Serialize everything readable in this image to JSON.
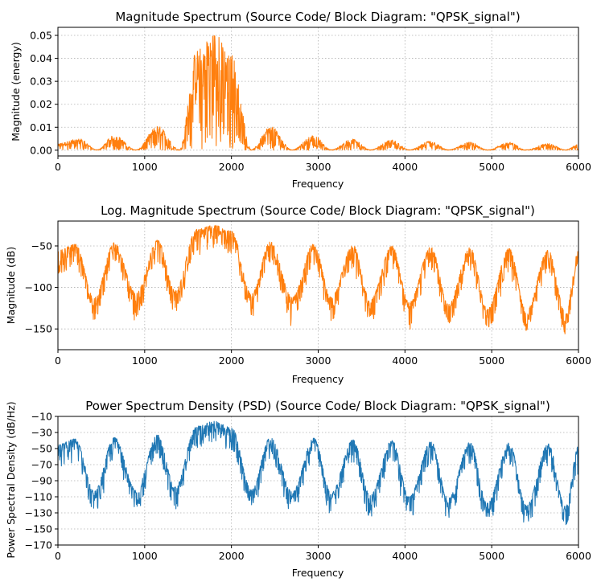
{
  "chart_data": [
    {
      "type": "line",
      "title": "Magnitude Spectrum (Source Code/ Block Diagram: \"QPSK_signal\")",
      "xlabel": "Frequency",
      "ylabel": "Magnitude (energy)",
      "xlim": [
        0,
        6000
      ],
      "ylim": [
        -0.0025,
        0.0535
      ],
      "xticks": [
        0,
        1000,
        2000,
        3000,
        4000,
        5000,
        6000
      ],
      "xtick_labels": [
        "0",
        "1000",
        "2000",
        "3000",
        "4000",
        "5000",
        "6000"
      ],
      "yticks": [
        0,
        0.01,
        0.02,
        0.03,
        0.04,
        0.05
      ],
      "ytick_labels": [
        "0.00",
        "0.01",
        "0.02",
        "0.03",
        "0.04",
        "0.05"
      ],
      "grid": true,
      "color": "#ff7f0e",
      "envelope": {
        "x": [
          0,
          250,
          450,
          650,
          900,
          1150,
          1400,
          1600,
          1800,
          2000,
          2230,
          2450,
          2700,
          2950,
          3150,
          3400,
          3600,
          3850,
          4050,
          4300,
          4500,
          4750,
          4950,
          5200,
          5400,
          5650,
          5850,
          6000
        ],
        "y": [
          0.003,
          0.005,
          0.0002,
          0.0065,
          0.0002,
          0.0105,
          0.0003,
          0.044,
          0.0515,
          0.042,
          0.0003,
          0.0105,
          0.0002,
          0.0065,
          0.0002,
          0.005,
          0.0002,
          0.0045,
          0.0002,
          0.004,
          0.0002,
          0.0035,
          0.0002,
          0.0035,
          0.0002,
          0.003,
          0.0002,
          0.0025
        ]
      }
    },
    {
      "type": "line",
      "title": "Log. Magnitude Spectrum (Source Code/ Block Diagram: \"QPSK_signal\")",
      "xlabel": "Frequency",
      "ylabel": "Magnitude (dB)",
      "xlim": [
        0,
        6000
      ],
      "ylim": [
        -175,
        -20
      ],
      "xticks": [
        0,
        1000,
        2000,
        3000,
        4000,
        5000,
        6000
      ],
      "xtick_labels": [
        "0",
        "1000",
        "2000",
        "3000",
        "4000",
        "5000",
        "6000"
      ],
      "yticks": [
        -50,
        -100,
        -150
      ],
      "ytick_labels": [
        "−50",
        "−100",
        "−150"
      ],
      "grid": true,
      "color": "#ff7f0e",
      "envelope": {
        "x": [
          0,
          200,
          420,
          650,
          900,
          1150,
          1350,
          1600,
          1800,
          2000,
          2230,
          2450,
          2700,
          2950,
          3150,
          3400,
          3600,
          3850,
          4050,
          4300,
          4500,
          4750,
          4950,
          5200,
          5400,
          5650,
          5850,
          6000
        ],
        "y": [
          -55,
          -48,
          -112,
          -46,
          -107,
          -43,
          -104,
          -30,
          -25,
          -32,
          -108,
          -45,
          -112,
          -47,
          -112,
          -49,
          -115,
          -50,
          -118,
          -51,
          -120,
          -52,
          -126,
          -53,
          -128,
          -55,
          -130,
          -56
        ]
      }
    },
    {
      "type": "line",
      "title": "Power Spectrum Density (PSD) (Source Code/ Block Diagram: \"QPSK_signal\")",
      "xlabel": "Frequency",
      "ylabel": "Power Spectral Density (dB/Hz)",
      "xlim": [
        0,
        6000
      ],
      "ylim": [
        -170,
        -10
      ],
      "xticks": [
        0,
        1000,
        2000,
        3000,
        4000,
        5000,
        6000
      ],
      "xtick_labels": [
        "0",
        "1000",
        "2000",
        "3000",
        "4000",
        "5000",
        "6000"
      ],
      "yticks": [
        -10,
        -30,
        -50,
        -70,
        -90,
        -110,
        -130,
        -150,
        -170
      ],
      "ytick_labels": [
        "−10",
        "−30",
        "−50",
        "−70",
        "−90",
        "−110",
        "−130",
        "−150",
        "−170"
      ],
      "grid": true,
      "color": "#1f77b4",
      "envelope": {
        "x": [
          0,
          200,
          420,
          650,
          900,
          1150,
          1350,
          1600,
          1800,
          2000,
          2230,
          2450,
          2700,
          2950,
          3150,
          3400,
          3600,
          3850,
          4050,
          4300,
          4500,
          4750,
          4950,
          5200,
          5400,
          5650,
          5850,
          6000
        ],
        "y": [
          -45,
          -38,
          -103,
          -36,
          -101,
          -33,
          -98,
          -22,
          -16,
          -24,
          -101,
          -35,
          -104,
          -37,
          -105,
          -39,
          -108,
          -40,
          -110,
          -41,
          -112,
          -42,
          -118,
          -43,
          -121,
          -44,
          -122,
          -47
        ]
      }
    }
  ]
}
